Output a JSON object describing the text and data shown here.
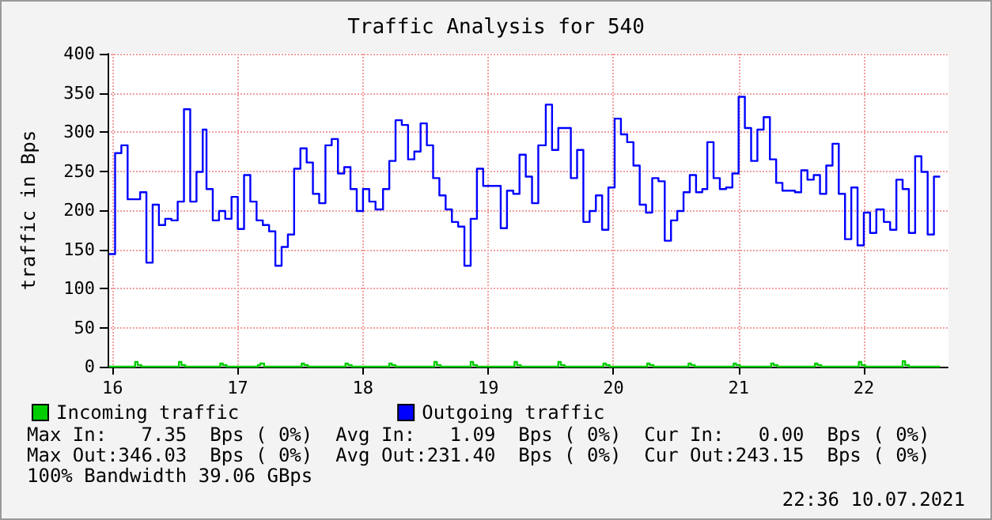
{
  "chart_data": {
    "type": "step",
    "title": "Traffic Analysis for 540",
    "ylabel": "traffic in Bps",
    "xlim": [
      15.96,
      22.67
    ],
    "xticks": [
      16,
      17,
      18,
      19,
      20,
      21,
      22
    ],
    "ylim": [
      0,
      400
    ],
    "yticks": [
      0,
      50,
      100,
      150,
      200,
      250,
      300,
      350,
      400
    ],
    "grid": true,
    "legend": "bottom",
    "marker": "none",
    "line_style": "solid",
    "series": [
      {
        "name": "Incoming traffic",
        "color": "#00cc00",
        "x": [
          15.97,
          16.18,
          16.2,
          16.23,
          16.53,
          16.55,
          16.58,
          16.86,
          16.88,
          16.91,
          17.16,
          17.18,
          17.21,
          17.51,
          17.53,
          17.56,
          17.86,
          17.88,
          17.91,
          18.21,
          18.23,
          18.26,
          18.57,
          18.59,
          18.62,
          18.86,
          18.88,
          18.91,
          19.21,
          19.23,
          19.26,
          19.56,
          19.58,
          19.61,
          19.92,
          19.94,
          19.97,
          20.27,
          20.29,
          20.32,
          20.6,
          20.62,
          20.65,
          20.96,
          20.98,
          21.01,
          21.26,
          21.28,
          21.31,
          21.61,
          21.63,
          21.66,
          21.96,
          21.98,
          22.01,
          22.31,
          22.33,
          22.36,
          22.61
        ],
        "values": [
          0,
          6,
          2,
          0,
          6,
          2,
          0,
          4,
          2,
          0,
          2,
          4,
          0,
          4,
          2,
          0,
          4,
          2,
          0,
          4,
          2,
          0,
          6,
          2,
          0,
          6,
          2,
          0,
          6,
          2,
          0,
          6,
          2,
          0,
          4,
          2,
          0,
          4,
          2,
          0,
          4,
          2,
          0,
          4,
          2,
          0,
          4,
          2,
          0,
          4,
          2,
          0,
          6,
          2,
          0,
          7,
          2,
          0,
          0
        ]
      },
      {
        "name": "Outgoing traffic",
        "color": "#0000ff",
        "x": [
          15.97,
          16.02,
          16.07,
          16.12,
          16.22,
          16.27,
          16.32,
          16.37,
          16.42,
          16.47,
          16.52,
          16.57,
          16.62,
          16.67,
          16.72,
          16.75,
          16.8,
          16.85,
          16.9,
          16.95,
          17.0,
          17.05,
          17.1,
          17.15,
          17.2,
          17.25,
          17.3,
          17.35,
          17.4,
          17.45,
          17.5,
          17.55,
          17.6,
          17.65,
          17.7,
          17.75,
          17.8,
          17.85,
          17.9,
          17.95,
          18.0,
          18.05,
          18.1,
          18.16,
          18.21,
          18.26,
          18.31,
          18.36,
          18.41,
          18.46,
          18.51,
          18.56,
          18.61,
          18.66,
          18.71,
          18.76,
          18.81,
          18.86,
          18.91,
          18.96,
          19.1,
          19.15,
          19.2,
          19.25,
          19.3,
          19.35,
          19.4,
          19.46,
          19.51,
          19.56,
          19.66,
          19.71,
          19.76,
          19.81,
          19.86,
          19.91,
          19.96,
          20.01,
          20.06,
          20.11,
          20.16,
          20.21,
          20.26,
          20.31,
          20.36,
          20.41,
          20.46,
          20.51,
          20.56,
          20.61,
          20.66,
          20.71,
          20.75,
          20.8,
          20.85,
          20.9,
          20.95,
          21.0,
          21.05,
          21.1,
          21.15,
          21.2,
          21.25,
          21.3,
          21.35,
          21.45,
          21.5,
          21.55,
          21.6,
          21.65,
          21.7,
          21.75,
          21.8,
          21.85,
          21.9,
          21.95,
          22.0,
          22.05,
          22.1,
          22.16,
          22.21,
          22.26,
          22.31,
          22.36,
          22.41,
          22.46,
          22.51,
          22.56,
          22.61
        ],
        "values": [
          144,
          273,
          283,
          214,
          223,
          133,
          207,
          181,
          189,
          187,
          211,
          329,
          211,
          249,
          303,
          227,
          187,
          199,
          189,
          217,
          176,
          245,
          211,
          187,
          181,
          173,
          129,
          153,
          169,
          253,
          279,
          261,
          221,
          209,
          283,
          291,
          247,
          255,
          227,
          199,
          227,
          211,
          201,
          227,
          263,
          315,
          309,
          265,
          275,
          311,
          283,
          241,
          219,
          201,
          185,
          179,
          129,
          189,
          253,
          231,
          177,
          225,
          221,
          271,
          243,
          209,
          283,
          335,
          277,
          305,
          241,
          277,
          185,
          199,
          219,
          175,
          229,
          317,
          297,
          287,
          257,
          207,
          197,
          241,
          237,
          161,
          187,
          199,
          223,
          245,
          223,
          227,
          287,
          241,
          227,
          229,
          247,
          345,
          305,
          263,
          303,
          319,
          265,
          235,
          225,
          223,
          251,
          239,
          245,
          221,
          257,
          285,
          221,
          163,
          229,
          155,
          197,
          171,
          201,
          185,
          175,
          239,
          227,
          171,
          269,
          249,
          169,
          243,
          243
        ]
      }
    ],
    "annotations": [
      "Max In:   7.35  Bps ( 0%)  Avg In:   1.09  Bps ( 0%)  Cur In:   0.00  Bps ( 0%)",
      "Max Out:346.03  Bps ( 0%)  Avg Out:231.40  Bps ( 0%)  Cur Out:243.15  Bps ( 0%)",
      "100% Bandwidth 39.06 GBps",
      "22:36 10.07.2021"
    ]
  }
}
